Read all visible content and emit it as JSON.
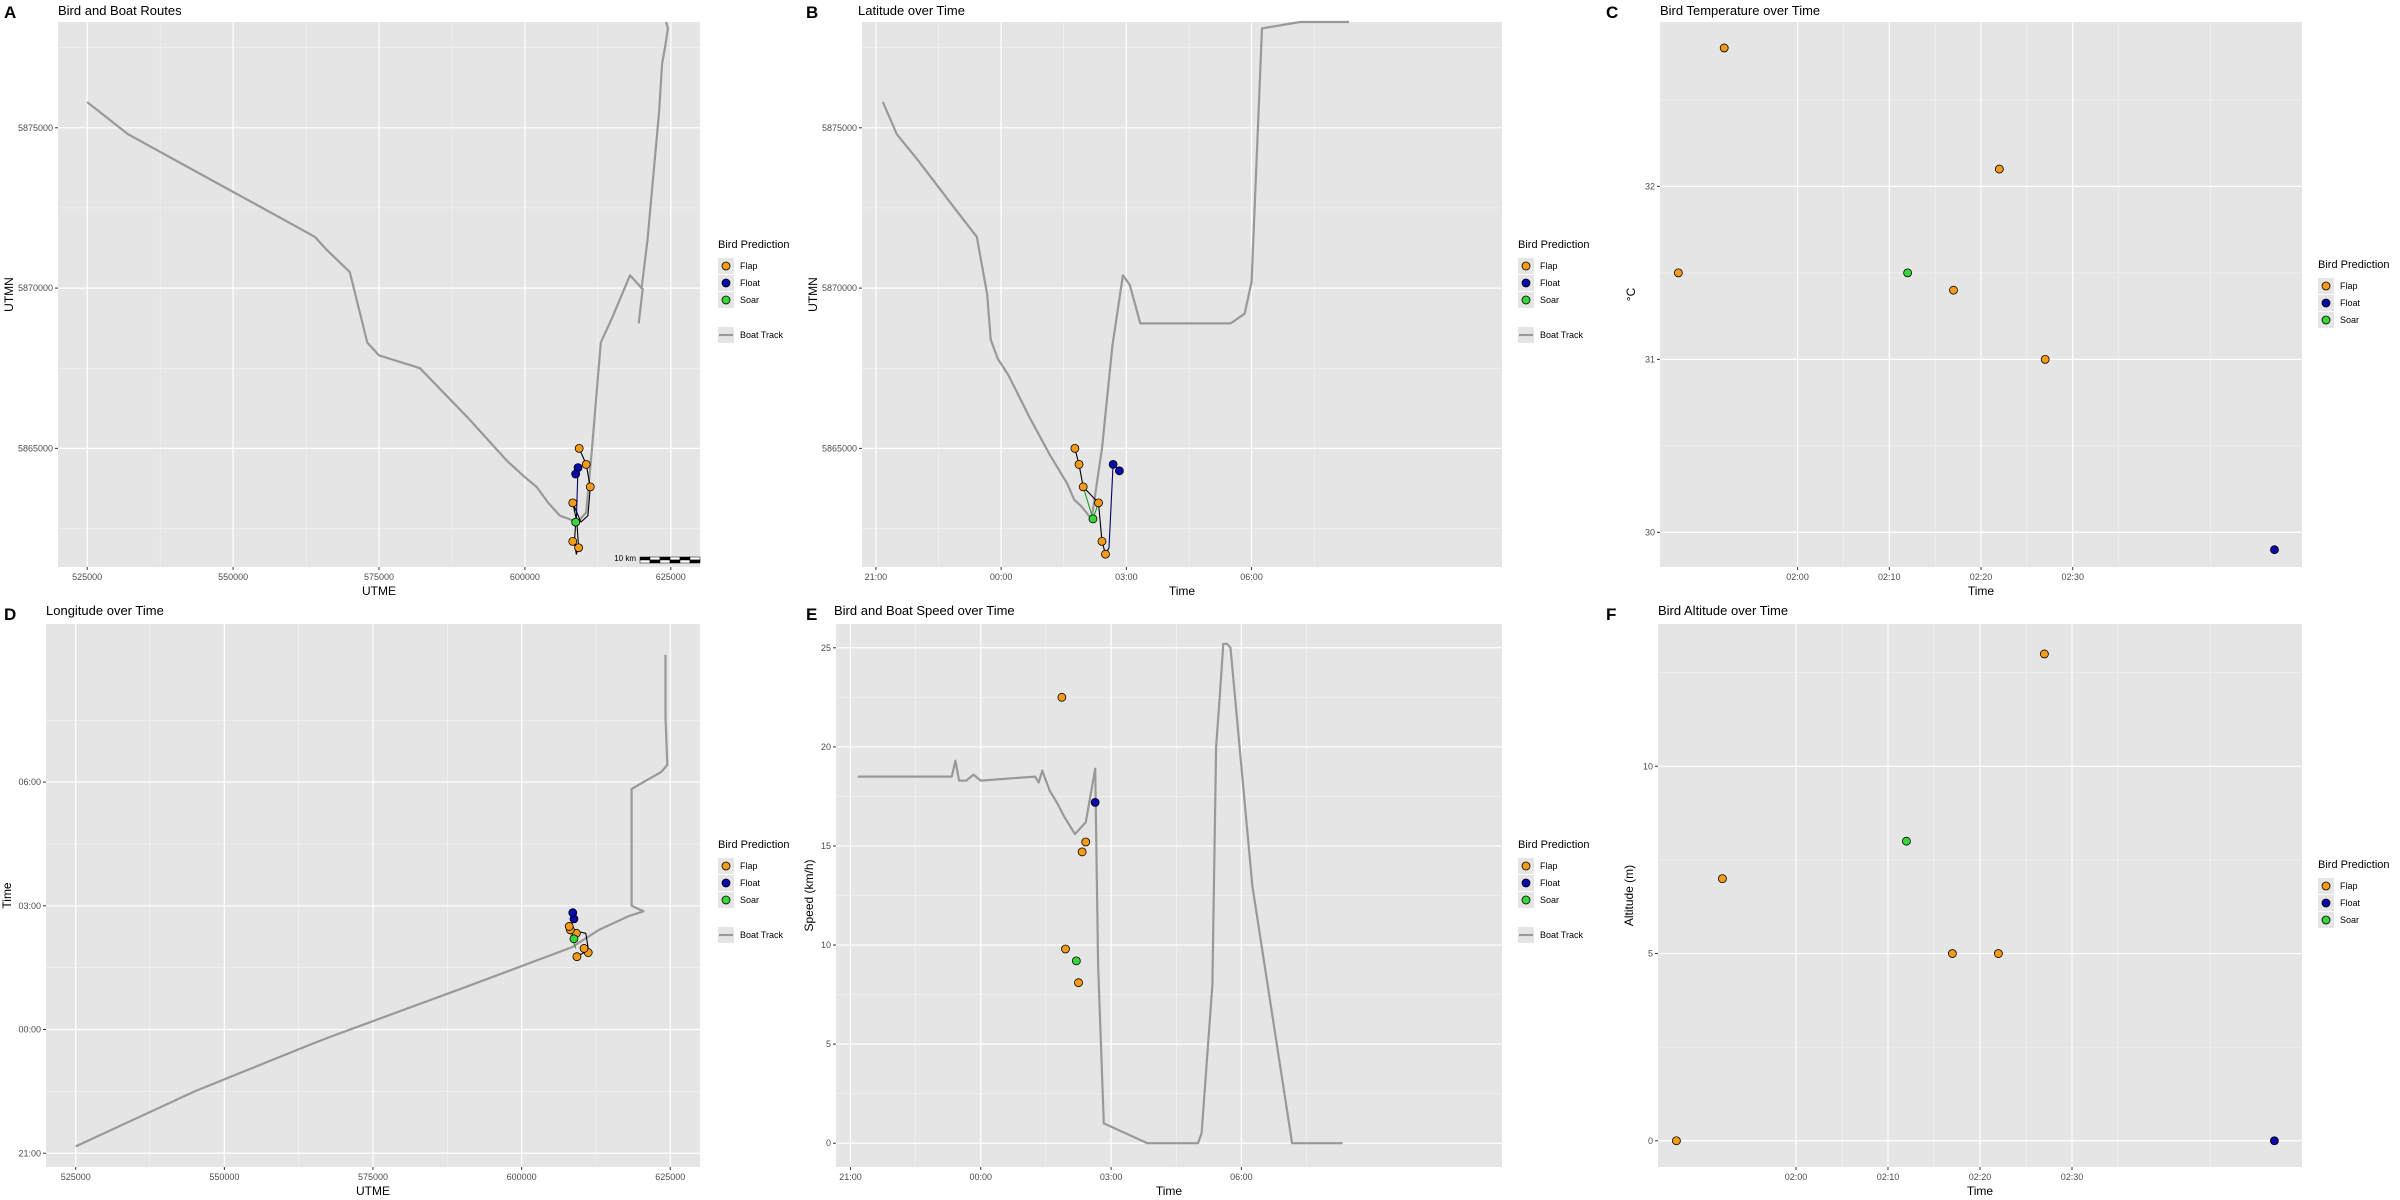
{
  "colors": {
    "panel_bg": "#e5e5e5",
    "grid_major": "#ffffff",
    "boat_track": "#999999",
    "bird_track": "#000000",
    "Flap": "#f59b1a",
    "Float": "#0a0aaa",
    "Soar": "#38d638",
    "Soar_track": "#1a9a1a",
    "Float_track": "#000066"
  },
  "legend": {
    "title": "Bird Prediction",
    "items": [
      "Flap",
      "Float",
      "Soar"
    ],
    "track_label": "Boat Track"
  },
  "chart_data": [
    {
      "id": "A",
      "letter": "A",
      "type": "line",
      "title": "Bird and Boat Routes",
      "xlabel": "UTME",
      "ylabel": "UTMN",
      "xlim": [
        520000,
        630000
      ],
      "ylim": [
        5861300,
        5878300
      ],
      "xticks": [
        525000,
        550000,
        575000,
        600000,
        625000
      ],
      "xtick_labels": [
        "525000",
        "550000",
        "575000",
        "600000",
        "625000"
      ],
      "yticks": [
        5865000,
        5870000,
        5875000
      ],
      "ytick_labels": [
        "5865000",
        "5870000",
        "5875000"
      ],
      "legend_track": true,
      "scale_bar_label": "10 km",
      "boat_track": {
        "x": [
          525000,
          532000,
          540000,
          548000,
          555000,
          564000,
          566000,
          570000,
          573000,
          575000,
          582000,
          590000,
          597000,
          600000,
          602000,
          604000,
          606000,
          607500,
          609000,
          610500,
          611500,
          613000,
          615000,
          618000,
          620000,
          621000,
          622000,
          623000,
          623500,
          624000,
          624500,
          624200
        ],
        "y": [
          5875800,
          5874800,
          5874000,
          5873200,
          5872500,
          5871600,
          5871200,
          5870500,
          5868300,
          5867900,
          5867500,
          5866000,
          5864600,
          5864100,
          5863800,
          5863300,
          5862900,
          5862800,
          5862700,
          5863000,
          5865000,
          5868300,
          5869100,
          5870400,
          5870000,
          5871500,
          5873500,
          5875500,
          5877000,
          5877500,
          5878100,
          5878300
        ]
      },
      "extra_boat_track": {
        "x": [
          619500,
          620200
        ],
        "y": [
          5868900,
          5870000
        ]
      },
      "bird_track": {
        "x": [
          609300,
          610500,
          611200,
          610800,
          609600,
          608200,
          608900,
          609200,
          608800,
          608500,
          608700
        ],
        "y": [
          5865000,
          5864500,
          5863800,
          5862900,
          5862700,
          5863300,
          5862700,
          5861900,
          5861700,
          5862100,
          5862700
        ]
      },
      "float_track": {
        "x": [
          608800,
          609100,
          608700
        ],
        "y": [
          5862700,
          5864400,
          5864200
        ]
      },
      "points": [
        {
          "x": 609300,
          "y": 5865000,
          "class": "Flap"
        },
        {
          "x": 610500,
          "y": 5864500,
          "class": "Flap"
        },
        {
          "x": 611200,
          "y": 5863800,
          "class": "Flap"
        },
        {
          "x": 608200,
          "y": 5863300,
          "class": "Flap"
        },
        {
          "x": 609200,
          "y": 5861900,
          "class": "Flap"
        },
        {
          "x": 608200,
          "y": 5862100,
          "class": "Flap"
        },
        {
          "x": 608700,
          "y": 5862700,
          "class": "Soar"
        },
        {
          "x": 609100,
          "y": 5864400,
          "class": "Float"
        },
        {
          "x": 608700,
          "y": 5864200,
          "class": "Float"
        }
      ]
    },
    {
      "id": "B",
      "letter": "B",
      "type": "line",
      "title": "Latitude over Time",
      "xlabel": "Time",
      "ylabel": "UTMN",
      "xlim": [
        -200,
        720
      ],
      "ylim": [
        5861300,
        5878300
      ],
      "xticks": [
        -180,
        0,
        180,
        360
      ],
      "xtick_labels": [
        "21:00",
        "00:00",
        "03:00",
        "06:00"
      ],
      "yticks": [
        5865000,
        5870000,
        5875000
      ],
      "ytick_labels": [
        "5865000",
        "5870000",
        "5875000"
      ],
      "legend_track": true,
      "boat_track": {
        "x": [
          -170,
          -150,
          -120,
          -60,
          -35,
          -20,
          -15,
          -5,
          10,
          40,
          70,
          95,
          105,
          115,
          130,
          145,
          160,
          175,
          185,
          200,
          215,
          230,
          330,
          350,
          360,
          375,
          430,
          500,
          500,
          500
        ],
        "y": [
          5875800,
          5874800,
          5874000,
          5872300,
          5871600,
          5869800,
          5868400,
          5867800,
          5867300,
          5866000,
          5864800,
          5863900,
          5863400,
          5863200,
          5862800,
          5865000,
          5868200,
          5870400,
          5870100,
          5868900,
          5868900,
          5868900,
          5868900,
          5869200,
          5870200,
          5878100,
          5878300,
          5878300,
          5878300,
          5878300
        ]
      },
      "bird_track": {
        "x": [
          106,
          112,
          118,
          140,
          145,
          150,
          155
        ],
        "y": [
          5865000,
          5864500,
          5863800,
          5863300,
          5862100,
          5861700,
          5861900
        ]
      },
      "soar_track": {
        "x": [
          118,
          132,
          140
        ],
        "y": [
          5863800,
          5862800,
          5863300
        ]
      },
      "float_track": {
        "x": [
          155,
          161,
          170
        ],
        "y": [
          5861900,
          5864500,
          5864300
        ]
      },
      "points": [
        {
          "x": 106,
          "y": 5865000,
          "class": "Flap"
        },
        {
          "x": 112,
          "y": 5864500,
          "class": "Flap"
        },
        {
          "x": 118,
          "y": 5863800,
          "class": "Flap"
        },
        {
          "x": 140,
          "y": 5863300,
          "class": "Flap"
        },
        {
          "x": 145,
          "y": 5862100,
          "class": "Flap"
        },
        {
          "x": 150,
          "y": 5861700,
          "class": "Flap"
        },
        {
          "x": 132,
          "y": 5862800,
          "class": "Soar"
        },
        {
          "x": 161,
          "y": 5864500,
          "class": "Float"
        },
        {
          "x": 170,
          "y": 5864300,
          "class": "Float"
        }
      ]
    },
    {
      "id": "C",
      "letter": "C",
      "type": "scatter",
      "title": "Bird Temperature over Time",
      "xlabel": "Time",
      "ylabel": "°C",
      "xlim": [
        105,
        175
      ],
      "ylim": [
        29.8,
        32.95
      ],
      "xticks": [
        120,
        130,
        140,
        150
      ],
      "xtick_labels": [
        "02:00",
        "02:10",
        "02:20",
        "02:30"
      ],
      "xminor": [
        125,
        135,
        145,
        155,
        165
      ],
      "yticks": [
        30,
        31,
        32
      ],
      "ytick_labels": [
        "30",
        "31",
        "32"
      ],
      "legend_track": false,
      "points": [
        {
          "x": 107,
          "y": 31.5,
          "class": "Flap"
        },
        {
          "x": 112,
          "y": 32.8,
          "class": "Flap"
        },
        {
          "x": 132,
          "y": 31.5,
          "class": "Soar"
        },
        {
          "x": 137,
          "y": 31.4,
          "class": "Flap"
        },
        {
          "x": 142,
          "y": 32.1,
          "class": "Flap"
        },
        {
          "x": 147,
          "y": 31.0,
          "class": "Flap"
        },
        {
          "x": 172,
          "y": 29.9,
          "class": "Float"
        }
      ]
    },
    {
      "id": "D",
      "letter": "D",
      "type": "line",
      "title": "Longitude over Time",
      "xlabel": "UTME",
      "ylabel": "Time",
      "xlim": [
        520000,
        630000
      ],
      "ylim": [
        -200,
        590
      ],
      "xticks": [
        525000,
        550000,
        575000,
        600000,
        625000
      ],
      "xtick_labels": [
        "525000",
        "550000",
        "575000",
        "600000",
        "625000"
      ],
      "yticks": [
        -180,
        0,
        180,
        360
      ],
      "ytick_labels": [
        "21:00",
        "00:00",
        "03:00",
        "06:00"
      ],
      "legend_track": true,
      "boat_track": {
        "x": [
          525000,
          545000,
          565000,
          568000,
          590000,
          608500,
          613000,
          618000,
          620500,
          618500,
          618500,
          620500,
          623500,
          624500,
          624200,
          624200
        ],
        "y": [
          -170,
          -90,
          -20,
          -10,
          60,
          120,
          145,
          165,
          172,
          180,
          350,
          360,
          375,
          385,
          455,
          545
        ]
      },
      "bird_track": {
        "x": [
          609300,
          610500,
          611200,
          610800,
          608200,
          608000,
          608500
        ],
        "y": [
          106,
          112,
          118,
          140,
          145,
          150,
          155
        ]
      },
      "soar_track": {
        "x": [
          609100,
          608600,
          608200
        ],
        "y": [
          118,
          132,
          140
        ]
      },
      "float_track": {
        "x": [
          608500,
          608800,
          608600
        ],
        "y": [
          155,
          161,
          170
        ]
      },
      "points": [
        {
          "x": 609300,
          "y": 106,
          "class": "Flap"
        },
        {
          "x": 611200,
          "y": 112,
          "class": "Flap"
        },
        {
          "x": 610500,
          "y": 118,
          "class": "Flap"
        },
        {
          "x": 609200,
          "y": 140,
          "class": "Flap"
        },
        {
          "x": 608200,
          "y": 145,
          "class": "Flap"
        },
        {
          "x": 608000,
          "y": 150,
          "class": "Flap"
        },
        {
          "x": 608800,
          "y": 132,
          "class": "Soar"
        },
        {
          "x": 608800,
          "y": 161,
          "class": "Float"
        },
        {
          "x": 608600,
          "y": 170,
          "class": "Float"
        }
      ]
    },
    {
      "id": "E",
      "letter": "E",
      "type": "line",
      "title": "Bird and Boat Speed over Time",
      "xlabel": "Time",
      "ylabel": "Speed (km/h)",
      "xlim": [
        -200,
        720
      ],
      "ylim": [
        -1.2,
        26.2
      ],
      "xticks": [
        -180,
        0,
        180,
        360
      ],
      "xtick_labels": [
        "21:00",
        "00:00",
        "03:00",
        "06:00"
      ],
      "yticks": [
        0,
        5,
        10,
        15,
        20,
        25
      ],
      "ytick_labels": [
        "0",
        "5",
        "10",
        "15",
        "20",
        "25"
      ],
      "legend_track": true,
      "boat_track": {
        "x": [
          -170,
          -40,
          -35,
          -30,
          -20,
          -10,
          0,
          75,
          80,
          85,
          95,
          105,
          115,
          130,
          145,
          158,
          162,
          170,
          230,
          300,
          305,
          320,
          325,
          330,
          335,
          340,
          345,
          375,
          430,
          500
        ],
        "y": [
          18.5,
          18.5,
          19.3,
          18.3,
          18.3,
          18.6,
          18.3,
          18.5,
          18.2,
          18.8,
          17.8,
          17.2,
          16.5,
          15.6,
          16.2,
          18.9,
          9.0,
          1.0,
          0.0,
          0.0,
          0.5,
          8.0,
          20.0,
          22.5,
          25.2,
          25.2,
          25.0,
          13.0,
          0.0,
          0.0
        ]
      },
      "points": [
        {
          "x": 112,
          "y": 22.5,
          "class": "Flap"
        },
        {
          "x": 117,
          "y": 9.8,
          "class": "Flap"
        },
        {
          "x": 135,
          "y": 8.1,
          "class": "Flap"
        },
        {
          "x": 140,
          "y": 14.7,
          "class": "Flap"
        },
        {
          "x": 145,
          "y": 15.2,
          "class": "Flap"
        },
        {
          "x": 132,
          "y": 9.2,
          "class": "Soar"
        },
        {
          "x": 158,
          "y": 17.2,
          "class": "Float"
        }
      ]
    },
    {
      "id": "F",
      "letter": "F",
      "type": "scatter",
      "title": "Bird Altitude over Time",
      "xlabel": "Time",
      "ylabel": "Altitude (m)",
      "xlim": [
        105,
        175
      ],
      "ylim": [
        -0.7,
        13.8
      ],
      "xticks": [
        120,
        130,
        140,
        150
      ],
      "xtick_labels": [
        "02:00",
        "02:10",
        "02:20",
        "02:30"
      ],
      "xminor": [
        125,
        135,
        145,
        155,
        165
      ],
      "yticks": [
        0,
        5,
        10
      ],
      "ytick_labels": [
        "0",
        "5",
        "10"
      ],
      "legend_track": false,
      "points": [
        {
          "x": 107,
          "y": 0,
          "class": "Flap"
        },
        {
          "x": 112,
          "y": 7,
          "class": "Flap"
        },
        {
          "x": 132,
          "y": 8,
          "class": "Soar"
        },
        {
          "x": 137,
          "y": 5,
          "class": "Flap"
        },
        {
          "x": 142,
          "y": 5,
          "class": "Flap"
        },
        {
          "x": 147,
          "y": 13,
          "class": "Flap"
        },
        {
          "x": 172,
          "y": 0,
          "class": "Float"
        }
      ]
    }
  ]
}
